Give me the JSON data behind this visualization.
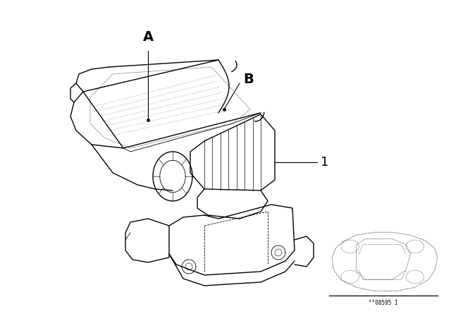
{
  "background_color": "#ffffff",
  "line_color": "#000000",
  "label_A": "A",
  "label_B": "B",
  "label_1": "1",
  "part_number": "°°08595 I",
  "figsize": [
    6.4,
    4.48
  ],
  "dpi": 100
}
